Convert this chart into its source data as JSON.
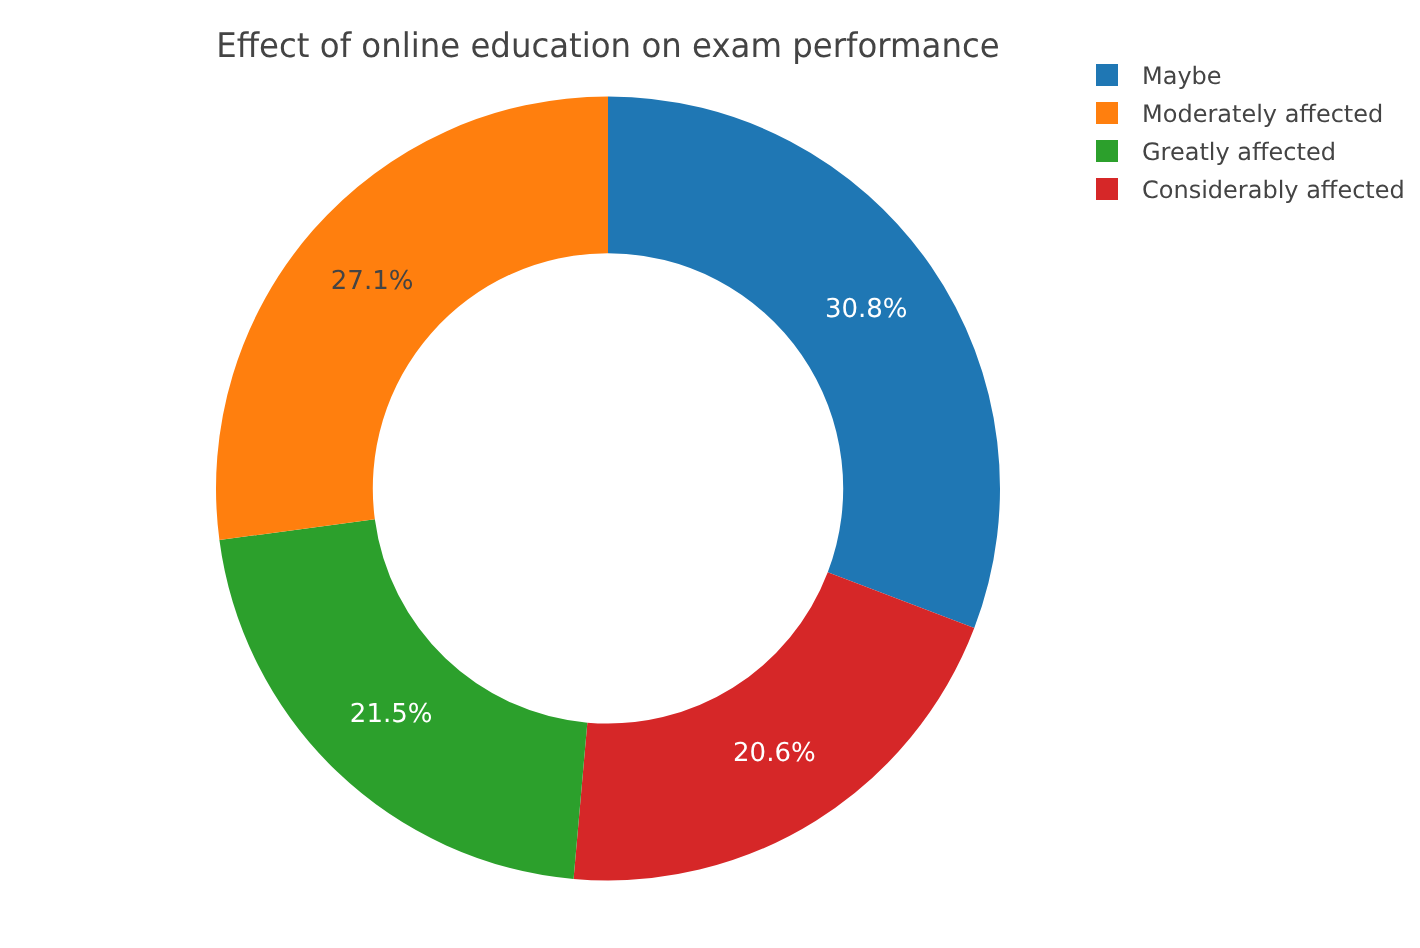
{
  "chart_data": {
    "type": "donut",
    "title": "Effect of online education on exam performance",
    "categories": [
      "Maybe",
      "Moderately affected",
      "Greatly affected",
      "Considerably affected"
    ],
    "values": [
      30.8,
      27.1,
      21.5,
      20.6
    ],
    "colors": [
      "#1f77b4",
      "#ff7f0e",
      "#2ca02c",
      "#d62728"
    ],
    "value_labels": [
      "30.8%",
      "27.1%",
      "21.5%",
      "20.6%"
    ],
    "legend": "top right"
  }
}
